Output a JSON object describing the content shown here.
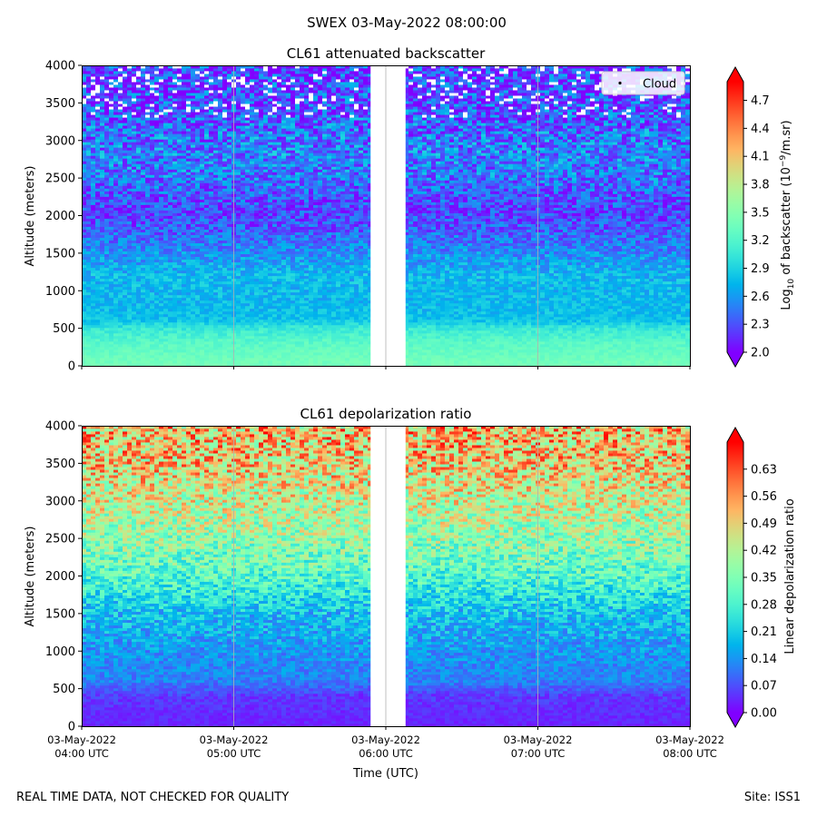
{
  "suptitle": "SWEX 03-May-2022 08:00:00",
  "footer_left": "REAL TIME DATA, NOT CHECKED FOR QUALITY",
  "footer_right": "Site: ISS1",
  "xlabel": "Time (UTC)",
  "x_ticks": [
    {
      "line1": "03-May-2022",
      "line2": "04:00 UTC",
      "hours": 4
    },
    {
      "line1": "03-May-2022",
      "line2": "05:00 UTC",
      "hours": 5
    },
    {
      "line1": "03-May-2022",
      "line2": "06:00 UTC",
      "hours": 6
    },
    {
      "line1": "03-May-2022",
      "line2": "07:00 UTC",
      "hours": 7
    },
    {
      "line1": "03-May-2022",
      "line2": "08:00 UTC",
      "hours": 8
    }
  ],
  "chart_data": [
    {
      "type": "heatmap",
      "title": "CL61 attenuated backscatter",
      "ylabel": "Altitude (meters)",
      "xlim_hours": [
        4,
        8
      ],
      "ylim": [
        0,
        4000
      ],
      "y_ticks": [
        0,
        500,
        1000,
        1500,
        2000,
        2500,
        3000,
        3500,
        4000
      ],
      "data_gap_hours": [
        5.9,
        6.13
      ],
      "legend": {
        "label": "Cloud",
        "position": "top-right"
      },
      "colorbar": {
        "label_prefix": "Log",
        "label_sub": "10",
        "label_mid": " of backscatter (10",
        "label_sup": "−9",
        "label_suffix": "/m.sr)",
        "range": [
          2.0,
          4.9
        ],
        "ticks": [
          "2.0",
          "2.3",
          "2.6",
          "2.9",
          "3.2",
          "3.5",
          "3.8",
          "4.1",
          "4.4",
          "4.7"
        ],
        "colormap": "rainbow"
      },
      "profile": {
        "altitudes": [
          0,
          100,
          200,
          300,
          400,
          500,
          600,
          800,
          1000,
          1200,
          1500,
          1800,
          2000,
          2200,
          2500,
          2800,
          3000,
          3300,
          3500,
          4000
        ],
        "values": [
          3.4,
          3.35,
          3.3,
          3.25,
          3.15,
          3.05,
          2.8,
          2.75,
          2.75,
          2.75,
          2.55,
          2.35,
          2.25,
          2.3,
          2.45,
          2.5,
          2.45,
          2.35,
          2.25,
          2.15
        ]
      }
    },
    {
      "type": "heatmap",
      "title": "CL61 depolarization ratio",
      "ylabel": "Altitude (meters)",
      "xlim_hours": [
        4,
        8
      ],
      "ylim": [
        0,
        4000
      ],
      "y_ticks": [
        0,
        500,
        1000,
        1500,
        2000,
        2500,
        3000,
        3500,
        4000
      ],
      "data_gap_hours": [
        5.9,
        6.13
      ],
      "colorbar": {
        "label": "Linear depolarization ratio",
        "range": [
          0.0,
          0.7
        ],
        "ticks": [
          "0.00",
          "0.07",
          "0.14",
          "0.21",
          "0.28",
          "0.35",
          "0.42",
          "0.49",
          "0.56",
          "0.63"
        ],
        "colormap": "rainbow"
      },
      "profile": {
        "altitudes": [
          0,
          200,
          400,
          500,
          600,
          800,
          1000,
          1500,
          2000,
          2500,
          3000,
          3500,
          4000
        ],
        "values": [
          0.03,
          0.04,
          0.05,
          0.09,
          0.12,
          0.13,
          0.14,
          0.19,
          0.3,
          0.38,
          0.44,
          0.5,
          0.52
        ]
      }
    }
  ]
}
